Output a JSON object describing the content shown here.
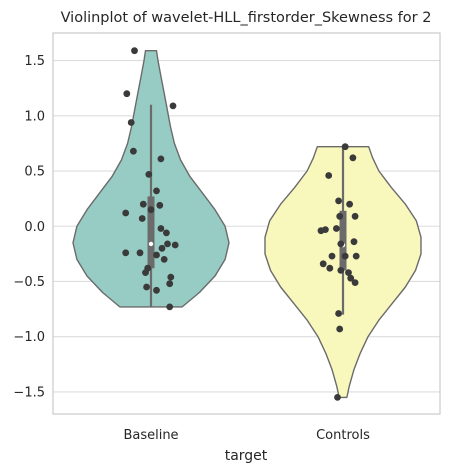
{
  "chart_data": {
    "type": "violin",
    "title": "Violinplot of wavelet-HLL_firstorder_Skewness for 2",
    "xlabel": "target",
    "ylabel": "",
    "ylim": [
      -1.7,
      1.75
    ],
    "yticks": [
      -1.5,
      -1.0,
      -0.5,
      0.0,
      0.5,
      1.0,
      1.5
    ],
    "ytick_labels": [
      "−1.5",
      "−1.0",
      "−0.5",
      "0.0",
      "0.5",
      "1.0",
      "1.5"
    ],
    "categories": [
      "Baseline",
      "Controls"
    ],
    "grid": true,
    "series": [
      {
        "category": "Baseline",
        "color": "#96ccc3",
        "min": -0.73,
        "max": 1.59,
        "q1": -0.38,
        "median": -0.16,
        "q3": 0.27,
        "whisker_low": -0.73,
        "whisker_high": 1.1,
        "density": [
          [
            -0.73,
            0.4
          ],
          [
            -0.6,
            0.62
          ],
          [
            -0.45,
            0.82
          ],
          [
            -0.3,
            0.95
          ],
          [
            -0.15,
            1.0
          ],
          [
            0.0,
            0.95
          ],
          [
            0.15,
            0.82
          ],
          [
            0.3,
            0.66
          ],
          [
            0.45,
            0.5
          ],
          [
            0.6,
            0.38
          ],
          [
            0.75,
            0.3
          ],
          [
            0.9,
            0.25
          ],
          [
            1.05,
            0.21
          ],
          [
            1.2,
            0.17
          ],
          [
            1.35,
            0.13
          ],
          [
            1.5,
            0.09
          ],
          [
            1.59,
            0.07
          ]
        ],
        "points": [
          {
            "x": -0.15,
            "y": 1.59
          },
          {
            "x": -0.22,
            "y": 1.2
          },
          {
            "x": 0.2,
            "y": 1.09
          },
          {
            "x": -0.18,
            "y": 0.94
          },
          {
            "x": -0.16,
            "y": 0.68
          },
          {
            "x": 0.09,
            "y": 0.61
          },
          {
            "x": -0.02,
            "y": 0.47
          },
          {
            "x": 0.05,
            "y": 0.32
          },
          {
            "x": -0.07,
            "y": 0.2
          },
          {
            "x": 0.08,
            "y": 0.19
          },
          {
            "x": 0.0,
            "y": 0.15
          },
          {
            "x": -0.23,
            "y": 0.12
          },
          {
            "x": -0.08,
            "y": 0.07
          },
          {
            "x": 0.09,
            "y": -0.02
          },
          {
            "x": 0.14,
            "y": -0.06
          },
          {
            "x": 0.15,
            "y": -0.16
          },
          {
            "x": 0.22,
            "y": -0.17
          },
          {
            "x": 0.1,
            "y": -0.2
          },
          {
            "x": -0.23,
            "y": -0.24
          },
          {
            "x": -0.1,
            "y": -0.24
          },
          {
            "x": 0.05,
            "y": -0.26
          },
          {
            "x": 0.12,
            "y": -0.3
          },
          {
            "x": -0.03,
            "y": -0.38
          },
          {
            "x": -0.05,
            "y": -0.42
          },
          {
            "x": 0.18,
            "y": -0.46
          },
          {
            "x": 0.17,
            "y": -0.52
          },
          {
            "x": -0.04,
            "y": -0.55
          },
          {
            "x": 0.05,
            "y": -0.58
          },
          {
            "x": 0.17,
            "y": -0.73
          }
        ]
      },
      {
        "category": "Controls",
        "color": "#f8f7bc",
        "min": -1.55,
        "max": 0.72,
        "q1": -0.4,
        "median": -0.17,
        "q3": 0.14,
        "whisker_low": -0.8,
        "whisker_high": 0.72,
        "density": [
          [
            -1.55,
            0.05
          ],
          [
            -1.45,
            0.08
          ],
          [
            -1.3,
            0.14
          ],
          [
            -1.15,
            0.22
          ],
          [
            -1.0,
            0.32
          ],
          [
            -0.85,
            0.46
          ],
          [
            -0.7,
            0.63
          ],
          [
            -0.55,
            0.8
          ],
          [
            -0.4,
            0.93
          ],
          [
            -0.25,
            1.0
          ],
          [
            -0.1,
            1.0
          ],
          [
            0.05,
            0.94
          ],
          [
            0.2,
            0.8
          ],
          [
            0.35,
            0.62
          ],
          [
            0.5,
            0.46
          ],
          [
            0.62,
            0.38
          ],
          [
            0.72,
            0.33
          ]
        ],
        "points": [
          {
            "x": 0.02,
            "y": 0.72
          },
          {
            "x": 0.09,
            "y": 0.62
          },
          {
            "x": -0.13,
            "y": 0.46
          },
          {
            "x": -0.04,
            "y": 0.23
          },
          {
            "x": 0.06,
            "y": 0.2
          },
          {
            "x": 0.11,
            "y": 0.09
          },
          {
            "x": -0.03,
            "y": 0.09
          },
          {
            "x": -0.06,
            "y": -0.02
          },
          {
            "x": -0.16,
            "y": -0.03
          },
          {
            "x": -0.2,
            "y": -0.04
          },
          {
            "x": 0.1,
            "y": -0.14
          },
          {
            "x": -0.02,
            "y": -0.16
          },
          {
            "x": -0.1,
            "y": -0.27
          },
          {
            "x": 0.02,
            "y": -0.27
          },
          {
            "x": 0.12,
            "y": -0.27
          },
          {
            "x": -0.18,
            "y": -0.34
          },
          {
            "x": -0.12,
            "y": -0.38
          },
          {
            "x": -0.02,
            "y": -0.4
          },
          {
            "x": 0.05,
            "y": -0.42
          },
          {
            "x": 0.07,
            "y": -0.47
          },
          {
            "x": 0.11,
            "y": -0.51
          },
          {
            "x": -0.04,
            "y": -0.79
          },
          {
            "x": -0.03,
            "y": -0.93
          },
          {
            "x": -0.05,
            "y": -1.55
          }
        ]
      }
    ]
  }
}
